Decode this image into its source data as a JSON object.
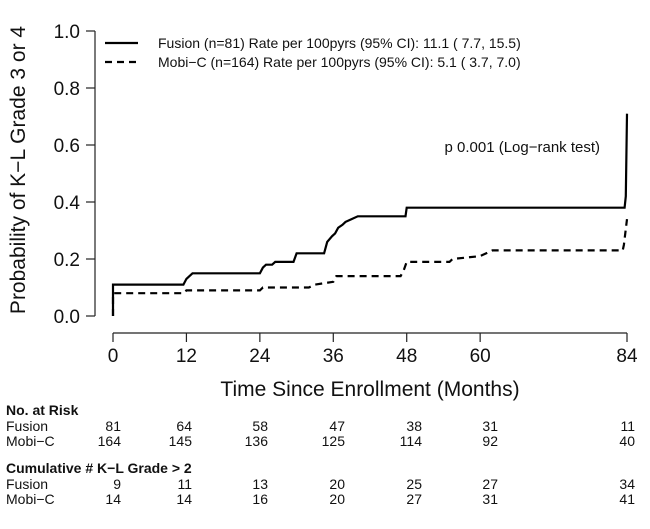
{
  "chart_data": {
    "type": "line",
    "title": "",
    "xlabel": "Time Since Enrollment (Months)",
    "ylabel": "Probability of K−L Grade 3 or 4",
    "xlim": [
      0,
      84
    ],
    "ylim": [
      0,
      1.0
    ],
    "x_ticks": [
      "0",
      "12",
      "24",
      "36",
      "48",
      "60",
      "84"
    ],
    "y_ticks": [
      "0.0",
      "0.2",
      "0.4",
      "0.6",
      "0.8",
      "1.0"
    ],
    "legend_position": "top-left",
    "grid": false,
    "series": [
      {
        "name": "Fusion (n=81) Rate per 100pyrs (95% CI): 11.1 ( 7.7, 15.5)",
        "line_style": "solid",
        "points": [
          [
            0,
            0.0
          ],
          [
            0,
            0.11
          ],
          [
            11.5,
            0.11
          ],
          [
            12,
            0.13
          ],
          [
            12.5,
            0.14
          ],
          [
            13,
            0.15
          ],
          [
            24,
            0.15
          ],
          [
            24.5,
            0.17
          ],
          [
            25,
            0.18
          ],
          [
            26,
            0.18
          ],
          [
            26.5,
            0.19
          ],
          [
            29.5,
            0.19
          ],
          [
            30,
            0.22
          ],
          [
            34.5,
            0.22
          ],
          [
            35,
            0.26
          ],
          [
            35.8,
            0.28
          ],
          [
            36.3,
            0.29
          ],
          [
            36.8,
            0.31
          ],
          [
            37.5,
            0.32
          ],
          [
            38,
            0.33
          ],
          [
            39,
            0.34
          ],
          [
            40,
            0.35
          ],
          [
            47.8,
            0.35
          ],
          [
            48,
            0.38
          ],
          [
            83.6,
            0.38
          ],
          [
            83.8,
            0.42
          ],
          [
            84,
            0.71
          ]
        ]
      },
      {
        "name": "Mobi−C (n=164) Rate per 100pyrs (95% CI):  5.1 ( 3.7,  7.0)",
        "line_style": "dashed",
        "points": [
          [
            0,
            0.0
          ],
          [
            0,
            0.08
          ],
          [
            11.5,
            0.08
          ],
          [
            12,
            0.09
          ],
          [
            24,
            0.09
          ],
          [
            24.5,
            0.1
          ],
          [
            32,
            0.1
          ],
          [
            33,
            0.11
          ],
          [
            36,
            0.12
          ],
          [
            36.5,
            0.14
          ],
          [
            47,
            0.14
          ],
          [
            47.5,
            0.16
          ],
          [
            48,
            0.19
          ],
          [
            55,
            0.19
          ],
          [
            55.5,
            0.2
          ],
          [
            60,
            0.21
          ],
          [
            61,
            0.22
          ],
          [
            62,
            0.23
          ],
          [
            83.3,
            0.23
          ],
          [
            83.5,
            0.25
          ],
          [
            84,
            0.34
          ]
        ]
      }
    ],
    "annotations": [
      "p 0.001 (Log−rank test)"
    ]
  },
  "risk_table": {
    "sections": [
      {
        "header": "No. at Risk",
        "rows": [
          {
            "label": "Fusion",
            "values": [
              "81",
              "64",
              "58",
              "47",
              "38",
              "31",
              "11"
            ]
          },
          {
            "label": "Mobi−C",
            "values": [
              "164",
              "145",
              "136",
              "125",
              "114",
              "92",
              "40"
            ]
          }
        ]
      },
      {
        "header": "Cumulative # K−L Grade > 2",
        "rows": [
          {
            "label": "Fusion",
            "values": [
              "9",
              "11",
              "13",
              "20",
              "25",
              "27",
              "34"
            ]
          },
          {
            "label": "Mobi−C",
            "values": [
              "14",
              "14",
              "16",
              "20",
              "27",
              "31",
              "41"
            ]
          }
        ]
      }
    ]
  }
}
